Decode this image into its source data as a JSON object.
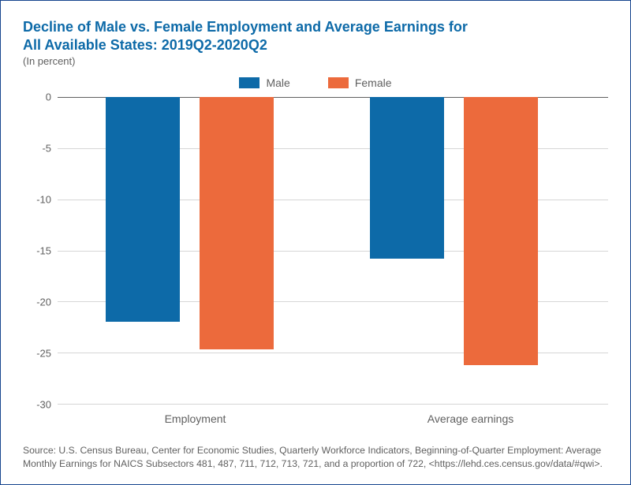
{
  "title_line1": "Decline of Male vs. Female Employment and Average Earnings for",
  "title_line2": "All Available States: 2019Q2-2020Q2",
  "subtitle": "(In percent)",
  "legend": {
    "male": {
      "label": "Male",
      "color": "#0d6aa8"
    },
    "female": {
      "label": "Female",
      "color": "#ec6a3c"
    }
  },
  "chart": {
    "type": "bar",
    "categories": [
      "Employment",
      "Average earnings"
    ],
    "series": [
      {
        "name": "Male",
        "color": "#0d6aa8",
        "values": [
          -22.0,
          -15.8
        ]
      },
      {
        "name": "Female",
        "color": "#ec6a3c",
        "values": [
          -24.7,
          -26.2
        ]
      }
    ],
    "ylim": [
      -30,
      0
    ],
    "ytick_step": 5,
    "yticks": [
      "0",
      "-5",
      "-10",
      "-15",
      "-20",
      "-25",
      "-30"
    ],
    "grid_color": "#d6d6d6",
    "zero_line_color": "#606060",
    "background_color": "#ffffff",
    "label_fontsize": 13,
    "bar_width_pct": 13.5,
    "bar_gap_pct": 3.5,
    "group_positions_pct": [
      24,
      72
    ]
  },
  "source": "Source: U.S. Census Bureau, Center for Economic Studies, Quarterly Workforce Indicators, Beginning-of-Quarter Employment: Average Monthly Earnings for NAICS Subsectors 481, 487, 711, 712, 713, 721, and a proportion of 722, <https://lehd.ces.census.gov/data/#qwi>."
}
